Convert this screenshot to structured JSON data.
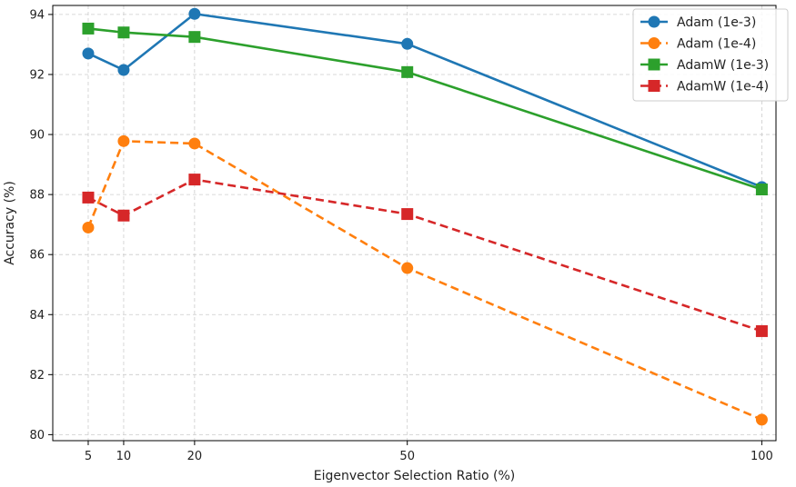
{
  "chart_data": {
    "type": "line",
    "xlabel": "Eigenvector Selection Ratio (%)",
    "ylabel": "Accuracy (%)",
    "x": [
      5,
      10,
      20,
      50,
      100
    ],
    "xlim": [
      0,
      102
    ],
    "ylim": [
      79.8,
      94.3
    ],
    "xticks": [
      "5",
      "10",
      "20",
      "50",
      "100"
    ],
    "yticks": [
      "80",
      "82",
      "84",
      "86",
      "88",
      "90",
      "92",
      "94"
    ],
    "grid": true,
    "legend_position": "top-right",
    "series": [
      {
        "name": "Adam (1e-3)",
        "values": [
          92.7,
          92.15,
          94.02,
          93.02,
          88.25
        ],
        "color": "#1f77b4",
        "marker": "circle",
        "dash": "solid"
      },
      {
        "name": "Adam (1e-4)",
        "values": [
          86.9,
          89.78,
          89.7,
          85.55,
          80.5
        ],
        "color": "#ff7f0e",
        "marker": "circle",
        "dash": "dashed"
      },
      {
        "name": "AdamW (1e-3)",
        "values": [
          93.53,
          93.4,
          93.25,
          92.08,
          88.17
        ],
        "color": "#2ca02c",
        "marker": "square",
        "dash": "solid"
      },
      {
        "name": "AdamW (1e-4)",
        "values": [
          87.9,
          87.3,
          88.5,
          87.35,
          83.45
        ],
        "color": "#d62728",
        "marker": "square",
        "dash": "dashed"
      }
    ]
  }
}
